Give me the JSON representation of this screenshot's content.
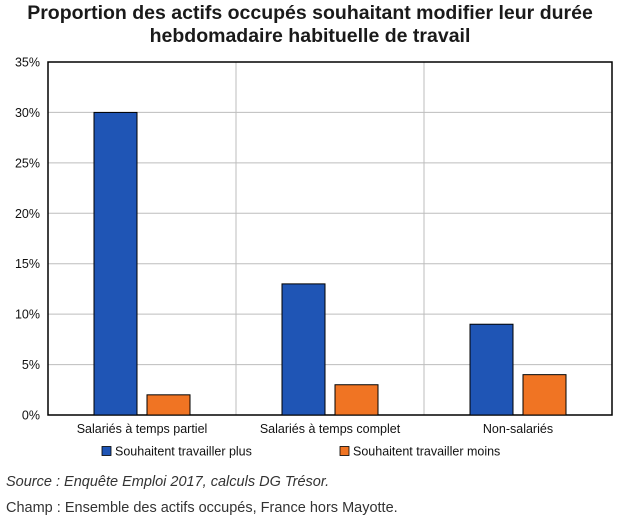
{
  "chart_data": {
    "type": "bar",
    "title_line1": "Proportion des actifs occupés souhaitant modifier leur durée",
    "title_line2": "hebdomadaire habituelle de travail",
    "categories": [
      "Salariés à temps partiel",
      "Salariés à temps complet",
      "Non-salariés"
    ],
    "series": [
      {
        "name": "Souhaitent travailler plus",
        "values": [
          30,
          13,
          9
        ],
        "color": "#1f55b5"
      },
      {
        "name": "Souhaitent travailler moins",
        "values": [
          2,
          3,
          4
        ],
        "color": "#f07423"
      }
    ],
    "ylim": [
      0,
      35
    ],
    "yticks": [
      0,
      5,
      10,
      15,
      20,
      25,
      30,
      35
    ],
    "ytick_labels": [
      "0%",
      "5%",
      "10%",
      "15%",
      "20%",
      "25%",
      "30%",
      "35%"
    ],
    "grid": true,
    "legend": "bottom"
  },
  "notes": {
    "source": "Source : Enquête Emploi 2017, calculs DG Trésor.",
    "champ": "Champ : Ensemble des actifs occupés, France hors Mayotte."
  }
}
